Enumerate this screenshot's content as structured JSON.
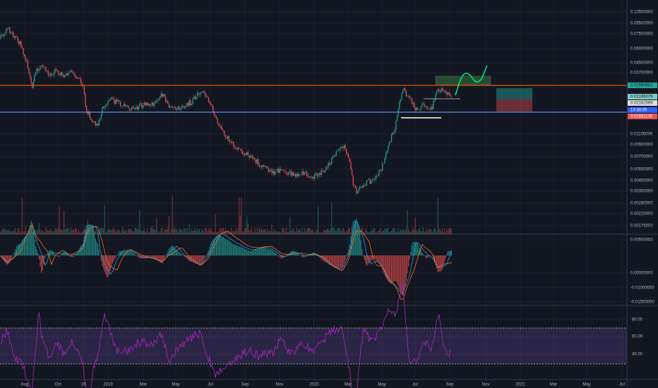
{
  "price_axis": [
    "0.10500000",
    "0.09500000",
    "0.07500000",
    "0.06000000",
    "0.04500000",
    "0.03700000",
    "0.01100000",
    "0.00900000",
    "0.00700000",
    "0.00550000",
    "0.00450000",
    "0.00350000",
    "0.00280000",
    "0.00220000",
    "0.00175000"
  ],
  "price_tags": [
    {
      "text": "0.02590662",
      "kind": "green"
    },
    {
      "text": "0.02196076",
      "kind": "teal"
    },
    {
      "text": "0.02162099",
      "kind": "white"
    },
    {
      "text": "13:30:35",
      "kind": "blue"
    },
    {
      "text": "0.01661130",
      "kind": "red"
    }
  ],
  "macd_axis": [
    "0.00500000",
    "0.00000000",
    "-0.01000000",
    "-0.01500000"
  ],
  "rsi_axis": [
    "80.00",
    "60.00",
    "40.00"
  ],
  "time_axis": [
    "Aug",
    "Oct",
    "19",
    "2019",
    "Mar",
    "May",
    "Jul",
    "Sep",
    "Nov",
    "2020",
    "Mar",
    "May",
    "Jul",
    "Sep",
    "Nov",
    "2021",
    "Mar",
    "May",
    "Jul"
  ]
}
